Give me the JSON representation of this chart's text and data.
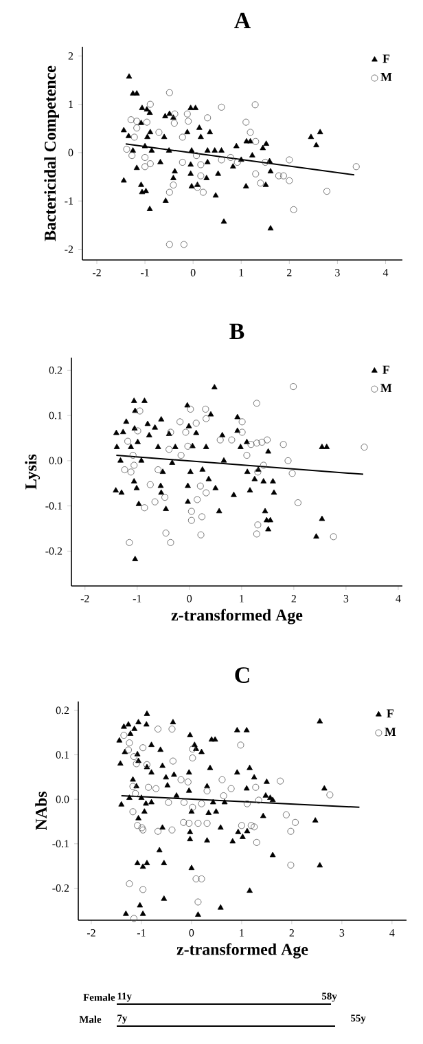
{
  "chart_data": [
    {
      "type": "scatter",
      "title": "A",
      "ylabel": "Bactericidal Competence",
      "xlim": [
        -2.3,
        4.35
      ],
      "ylim": [
        -2.22,
        2.19
      ],
      "xticks": [
        -2,
        -1,
        0,
        1,
        2,
        3,
        4
      ],
      "yticks": [
        -2,
        -1,
        0,
        1,
        2
      ],
      "legend": "top right",
      "series": [
        {
          "name": "F",
          "color": "#000000",
          "marker": "triangle",
          "x": [
            -1.33,
            -1.25,
            -1.17,
            -1.44,
            -1.34,
            -1.06,
            -0.96,
            -0.9,
            -1.08,
            -0.95,
            -0.89,
            -1.0,
            -0.86,
            -1.25,
            -1.17,
            -1.44,
            -1.08,
            -1.06,
            -0.98,
            -0.9,
            -0.57,
            -0.6,
            -0.58,
            -0.49,
            -0.41,
            -0.5,
            -0.38,
            -0.41,
            -0.68,
            -0.05,
            0.05,
            -0.12,
            0.13,
            -0.03,
            -0.05,
            -0.05,
            -0.03,
            0.09,
            0.16,
            0.35,
            0.3,
            0.3,
            0.28,
            0.45,
            0.52,
            0.47,
            0.64,
            0.59,
            0.83,
            0.9,
            1.0,
            1.11,
            1.19,
            1.23,
            1.1,
            1.45,
            1.52,
            1.51,
            1.61,
            1.61,
            1.59,
            2.45,
            2.56,
            2.64
          ],
          "values": [
            1.57,
            1.22,
            1.22,
            0.46,
            0.34,
            0.92,
            0.89,
            0.82,
            0.61,
            0.32,
            0.42,
            0.13,
            0.04,
            0.04,
            -0.32,
            -0.58,
            -0.67,
            -0.82,
            -0.8,
            -1.17,
            -1.0,
            0.32,
            0.75,
            0.8,
            0.72,
            0.04,
            -0.39,
            -0.53,
            -0.2,
            0.92,
            0.92,
            0.42,
            0.51,
            0.04,
            -0.25,
            -0.44,
            -0.7,
            -0.67,
            0.32,
            0.42,
            0.04,
            -0.2,
            -0.53,
            0.04,
            -0.44,
            -0.89,
            -1.43,
            0.04,
            -0.29,
            0.13,
            -0.15,
            0.23,
            0.23,
            -0.06,
            -0.7,
            0.09,
            0.18,
            -0.67,
            -0.39,
            -1.57,
            -0.18,
            0.32,
            0.15,
            0.42
          ]
        },
        {
          "name": "M",
          "color": "#555555",
          "marker": "circle",
          "x": [
            -0.49,
            -0.89,
            -1.29,
            -1.17,
            -0.96,
            -1.17,
            -1.22,
            -1.38,
            -1.27,
            -1.0,
            -1.0,
            -0.89,
            -0.71,
            -0.38,
            -0.39,
            -0.41,
            -0.49,
            -0.49,
            -0.19,
            -0.12,
            -0.1,
            0.3,
            -0.22,
            -0.22,
            0.07,
            0.16,
            0.16,
            0.09,
            0.21,
            0.59,
            0.59,
            0.78,
            0.92,
            1.1,
            1.19,
            1.29,
            1.3,
            1.3,
            1.4,
            1.5,
            1.78,
            1.88,
            2.0,
            2.0,
            2.09,
            2.78,
            3.39
          ],
          "values": [
            1.24,
            1.0,
            0.68,
            0.65,
            0.63,
            0.51,
            0.32,
            0.07,
            -0.06,
            -0.1,
            -0.29,
            -0.23,
            0.42,
            0.8,
            0.61,
            -0.67,
            -0.82,
            -1.9,
            -1.9,
            0.8,
            0.65,
            0.72,
            0.32,
            -0.2,
            -0.06,
            -0.25,
            -0.48,
            -0.72,
            -0.82,
            0.94,
            -0.15,
            -0.1,
            -0.2,
            0.63,
            0.42,
            0.99,
            0.23,
            -0.44,
            -0.63,
            -0.2,
            -0.48,
            -0.48,
            -0.15,
            -0.58,
            -1.18,
            -0.8,
            -0.29
          ]
        },
        {
          "type": "line",
          "color": "#000000",
          "x": [
            -1.4,
            3.35
          ],
          "values": [
            0.18,
            -0.46
          ]
        }
      ]
    },
    {
      "type": "scatter",
      "title": "B",
      "ylabel": "Lysis",
      "xlabel": "z-transformed Age",
      "xlim": [
        -2.26,
        4.08
      ],
      "ylim": [
        -0.277,
        0.228
      ],
      "xticks": [
        -2,
        -1,
        0,
        1,
        2,
        3,
        4
      ],
      "yticks": [
        -0.2,
        -0.1,
        {
          "value": 0,
          "label": "0.0"
        },
        0.1,
        0.2
      ],
      "legend": "top right",
      "series": [
        {
          "name": "F",
          "color": "#000000",
          "marker": "triangle",
          "x": [
            -1.4,
            -1.27,
            -1.21,
            -1.39,
            -1.32,
            -1.41,
            -1.3,
            -1.06,
            -0.86,
            -1.04,
            -1.05,
            -0.99,
            -0.92,
            -1.12,
            -1.06,
            -1.01,
            -0.97,
            -1.04,
            -0.8,
            -0.77,
            -0.66,
            -0.6,
            -0.54,
            -0.51,
            -0.55,
            -0.54,
            -0.45,
            -0.39,
            -0.33,
            -0.27,
            -0.04,
            -0.01,
            0.06,
            0.02,
            -0.03,
            -0.03,
            0.13,
            0.25,
            0.32,
            0.37,
            0.41,
            0.48,
            0.5,
            0.57,
            0.63,
            0.66,
            0.85,
            0.92,
            0.92,
            0.98,
            1.1,
            1.11,
            1.16,
            1.25,
            1.32,
            1.51,
            1.45,
            1.48,
            1.55,
            1.51,
            1.6,
            1.62,
            1.42,
            2.54,
            2.63,
            2.54,
            2.43
          ],
          "values": [
            0.061,
            0.063,
            0.086,
            0.03,
            0.0,
            -0.066,
            -0.071,
            0.132,
            0.132,
            0.11,
            0.071,
            0.041,
            0.0,
            0.03,
            -0.046,
            -0.061,
            -0.096,
            -0.218,
            0.081,
            0.056,
            0.073,
            0.03,
            0.091,
            -0.025,
            -0.056,
            -0.071,
            -0.107,
            0.059,
            -0.005,
            0.03,
            0.122,
            0.076,
            0.032,
            -0.025,
            -0.056,
            -0.091,
            0.061,
            -0.02,
            0.03,
            -0.041,
            0.102,
            0.162,
            -0.061,
            -0.112,
            0.056,
            0.0,
            -0.076,
            0.096,
            0.066,
            0.03,
            0.041,
            -0.025,
            -0.066,
            -0.041,
            -0.02,
            0.02,
            -0.112,
            -0.132,
            -0.132,
            -0.152,
            -0.046,
            -0.071,
            -0.046,
            0.03,
            0.03,
            -0.129,
            -0.168
          ]
        },
        {
          "name": "M",
          "color": "#555555",
          "marker": "circle",
          "x": [
            -0.95,
            -1.18,
            -1.08,
            -1.24,
            -1.12,
            -1.06,
            -0.99,
            -1.15,
            -0.86,
            -0.75,
            -0.66,
            -0.6,
            -0.47,
            -0.45,
            -0.36,
            -0.36,
            -0.39,
            -0.16,
            -0.18,
            -0.07,
            -0.03,
            0.02,
            0.04,
            0.04,
            0.13,
            0.15,
            0.21,
            0.22,
            0.24,
            0.31,
            0.32,
            0.32,
            0.59,
            0.81,
            1.01,
            1.01,
            1.1,
            1.18,
            1.29,
            1.29,
            1.31,
            1.31,
            1.29,
            1.39,
            1.49,
            1.42,
            1.8,
            1.89,
            1.97,
            1.99,
            2.08,
            2.76,
            3.35
          ],
          "values": [
            0.11,
            0.043,
            0.012,
            -0.02,
            -0.025,
            -0.01,
            0.066,
            -0.181,
            -0.104,
            -0.053,
            -0.091,
            -0.02,
            -0.081,
            -0.16,
            -0.181,
            0.063,
            0.025,
            0.012,
            0.086,
            0.063,
            0.032,
            0.114,
            -0.112,
            -0.132,
            0.083,
            -0.086,
            -0.056,
            -0.164,
            -0.124,
            0.114,
            0.093,
            -0.071,
            0.046,
            0.046,
            0.086,
            0.063,
            0.012,
            0.036,
            0.127,
            0.039,
            -0.025,
            -0.142,
            -0.162,
            0.041,
            0.046,
            -0.01,
            0.036,
            0.0,
            -0.028,
            0.164,
            -0.093,
            -0.168,
            0.03
          ]
        },
        {
          "type": "line",
          "color": "#000000",
          "x": [
            -1.4,
            3.33
          ],
          "values": [
            0.012,
            -0.03
          ]
        }
      ]
    },
    {
      "type": "scatter",
      "title": "C",
      "ylabel": "NAbs",
      "xlabel": "z-transformed Age",
      "xlim": [
        -2.26,
        4.29
      ],
      "ylim": [
        -0.272,
        0.22
      ],
      "xticks": [
        -2,
        -1,
        0,
        1,
        2,
        3,
        4
      ],
      "yticks": [
        -0.2,
        -0.1,
        {
          "value": 0,
          "label": "0.0"
        },
        0.1,
        0.2
      ],
      "legend": "top right",
      "annotations": [
        "Female",
        "11y",
        "58y",
        "Male",
        "7y",
        "55y"
      ],
      "series": [
        {
          "name": "F",
          "color": "#000000",
          "marker": "triangle",
          "x": [
            -1.35,
            -1.26,
            -1.44,
            -1.22,
            -1.14,
            -1.06,
            -0.9,
            -0.89,
            -1.42,
            -1.33,
            -1.08,
            -1.06,
            -1.17,
            -1.1,
            -1.4,
            -1.24,
            -1.0,
            -0.91,
            -1.06,
            -0.94,
            -0.8,
            -0.89,
            -0.8,
            -0.8,
            -0.62,
            -0.58,
            -0.51,
            -0.48,
            -0.37,
            -0.35,
            -0.3,
            -0.58,
            -0.64,
            -0.55,
            -0.55,
            -1.08,
            -0.97,
            -0.89,
            -1.31,
            -1.03,
            -0.97,
            -0.03,
            0.06,
            0.09,
            -0.05,
            -0.05,
            0.0,
            -0.03,
            -0.03,
            0.0,
            0.13,
            0.2,
            0.31,
            0.37,
            0.34,
            0.31,
            0.4,
            0.47,
            0.43,
            0.49,
            0.66,
            0.58,
            0.58,
            0.82,
            0.91,
            0.91,
            1.1,
            0.93,
            1.02,
            1.11,
            1.1,
            1.16,
            1.25,
            1.16,
            1.43,
            1.5,
            1.48,
            1.57,
            1.62,
            1.62,
            2.56,
            2.47,
            2.56,
            2.65
          ],
          "values": [
            0.163,
            0.168,
            0.132,
            0.147,
            0.158,
            0.173,
            0.168,
            0.192,
            0.08,
            0.106,
            0.101,
            0.086,
            0.044,
            0.029,
            -0.012,
            0.003,
            0.003,
            -0.01,
            -0.043,
            -0.028,
            0.122,
            0.072,
            0.06,
            -0.007,
            0.111,
            0.075,
            0.049,
            0.031,
            0.173,
            0.055,
            0.008,
            -0.064,
            -0.115,
            -0.144,
            -0.224,
            -0.144,
            -0.152,
            -0.144,
            -0.258,
            -0.239,
            -0.258,
            0.144,
            0.122,
            0.113,
            0.06,
            0.019,
            -0.028,
            -0.074,
            -0.09,
            -0.155,
            -0.26,
            0.106,
            0.029,
            0.07,
            -0.031,
            -0.093,
            0.134,
            0.134,
            -0.007,
            -0.028,
            -0.007,
            -0.064,
            -0.244,
            -0.095,
            0.06,
            0.155,
            0.155,
            -0.074,
            -0.085,
            -0.072,
            0.024,
            0.07,
            0.049,
            -0.206,
            -0.038,
            0.039,
            0.008,
            0.003,
            -0.002,
            -0.126,
            0.175,
            -0.048,
            -0.149,
            0.024
          ]
        },
        {
          "name": "M",
          "color": "#555555",
          "marker": "circle",
          "x": [
            -1.35,
            -1.24,
            -1.26,
            -1.15,
            -1.1,
            -1.17,
            -1.12,
            -1.17,
            -1.08,
            -0.99,
            -0.97,
            -1.24,
            -1.15,
            -0.97,
            -0.89,
            -0.86,
            -0.71,
            -0.67,
            -0.39,
            -0.37,
            -0.46,
            -0.39,
            -0.67,
            -0.97,
            -0.21,
            -0.15,
            -0.16,
            -0.07,
            0.02,
            0.02,
            0.02,
            -0.05,
            0.13,
            0.09,
            0.2,
            0.13,
            0.2,
            0.31,
            0.31,
            0.61,
            0.64,
            0.79,
            0.98,
            1.0,
            1.11,
            1.19,
            1.25,
            1.28,
            1.3,
            1.34,
            1.77,
            1.89,
            1.98,
            2.07,
            1.98,
            2.76
          ],
          "values": [
            0.144,
            0.127,
            0.111,
            0.096,
            0.08,
            0.029,
            0.013,
            -0.028,
            -0.059,
            -0.064,
            -0.069,
            -0.19,
            -0.268,
            0.116,
            0.078,
            0.027,
            0.024,
            0.158,
            0.158,
            0.086,
            -0.007,
            -0.069,
            -0.072,
            -0.203,
            0.044,
            -0.007,
            -0.052,
            0.039,
            0.113,
            0.093,
            -0.018,
            -0.054,
            -0.054,
            -0.179,
            -0.179,
            -0.231,
            -0.01,
            0.019,
            -0.054,
            0.044,
            0.008,
            0.024,
            0.122,
            -0.059,
            -0.01,
            -0.059,
            -0.062,
            0.027,
            -0.097,
            -0.002,
            0.041,
            -0.035,
            -0.072,
            -0.052,
            -0.148,
            0.01
          ]
        },
        {
          "type": "line",
          "color": "#000000",
          "x": [
            -1.4,
            3.35
          ],
          "values": [
            0.008,
            -0.018
          ]
        }
      ]
    }
  ]
}
